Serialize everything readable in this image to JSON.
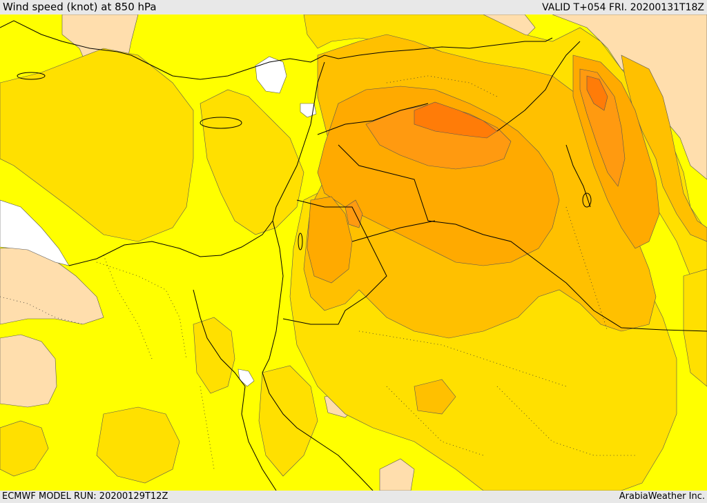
{
  "header": {
    "title": "Wind speed (knot) at 850 hPa",
    "valid": "VALID T+054 FRI. 20200131T18Z"
  },
  "footer": {
    "model_run": "ECMWF MODEL RUN: 20200129T12Z",
    "credit": "ArabiaWeather Inc."
  },
  "colors": {
    "background_yellow": "#ffff00",
    "gold": "#ffe000",
    "amber": "#ffc000",
    "orange_light": "#ffaa00",
    "orange": "#ff9a10",
    "orange_dark": "#ff7c08",
    "peach": "#ffdead",
    "nodata": "#ffffff",
    "contour": "#555555",
    "border": "#000000"
  }
}
